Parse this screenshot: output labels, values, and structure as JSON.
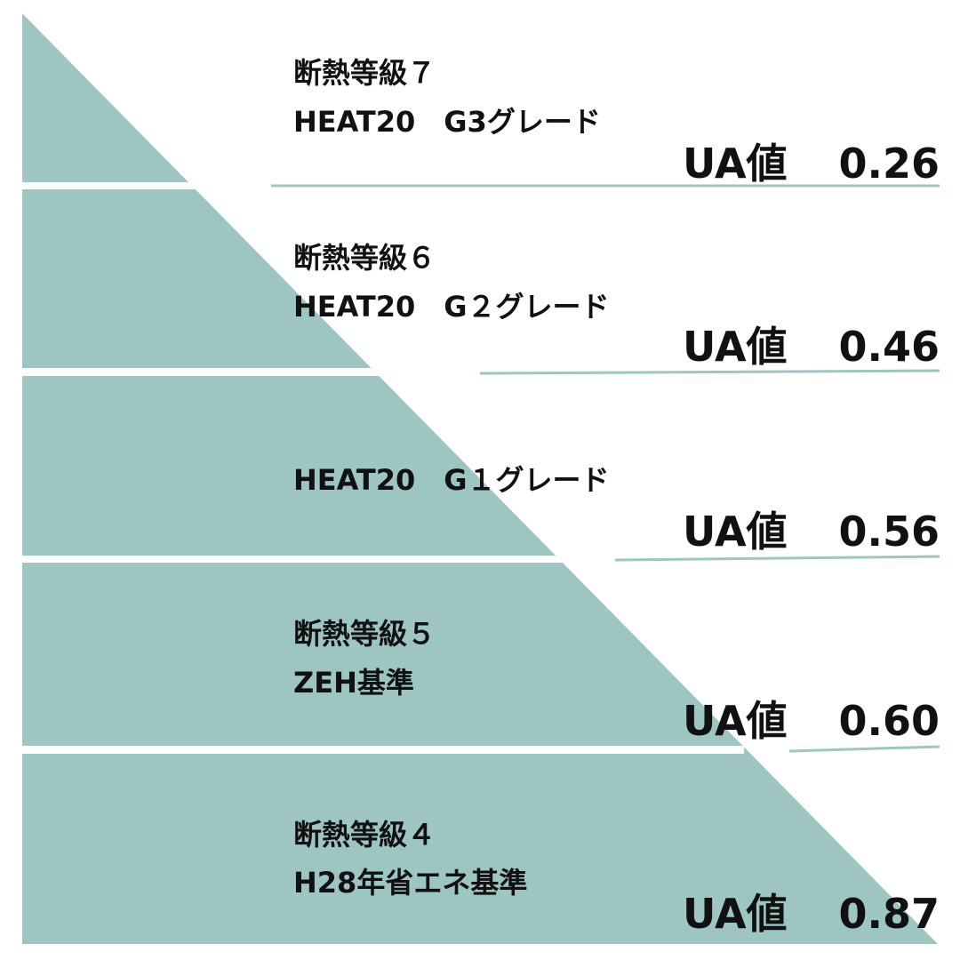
{
  "tiers": [
    {
      "grade": "断熱等級７",
      "standard": "HEAT20　G3グレード",
      "ua_label": "UA値",
      "ua_value": "0.26"
    },
    {
      "grade": "断熱等級６",
      "standard": "HEAT20　G２グレード",
      "ua_label": "UA値",
      "ua_value": "0.46"
    },
    {
      "standard": "HEAT20　G１グレード",
      "ua_label": "UA値",
      "ua_value": "0.56"
    },
    {
      "grade": "断熱等級５",
      "standard": "ZEH基準",
      "ua_label": "UA値",
      "ua_value": "0.60"
    },
    {
      "grade": "断熱等級４",
      "standard": "H28年省エネ基準",
      "ua_label": "UA値",
      "ua_value": "0.87"
    }
  ]
}
